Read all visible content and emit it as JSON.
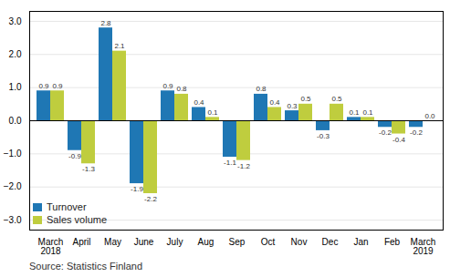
{
  "chart_data": {
    "type": "bar",
    "categories": [
      "March\n2018",
      "April",
      "May",
      "June",
      "July",
      "Aug",
      "Sep",
      "Oct",
      "Nov",
      "Dec",
      "Jan",
      "Feb",
      "March\n2019"
    ],
    "series": [
      {
        "name": "Turnover",
        "color": "#1f77b4",
        "values": [
          0.9,
          -0.9,
          2.8,
          -1.9,
          0.9,
          0.4,
          -1.1,
          0.8,
          0.3,
          -0.3,
          0.1,
          -0.2,
          -0.2
        ],
        "value_labels": [
          "0.9",
          "-0.9",
          "2.8",
          "-1.9",
          "0.9",
          "0.4",
          "-1.1",
          "0.8",
          "0.3",
          "-0.3",
          "0.1",
          "-0.2",
          "-0.2"
        ]
      },
      {
        "name": "Sales volume",
        "color": "#bfcd3e",
        "values": [
          0.9,
          -1.3,
          2.1,
          -2.2,
          0.8,
          0.1,
          -1.2,
          0.4,
          0.5,
          0.5,
          0.1,
          -0.4,
          0.0
        ],
        "value_labels": [
          "0.9",
          "-1.3",
          "2.1",
          "-2.2",
          "0.8",
          "0.1",
          "-1.2",
          "0.4",
          "0.5",
          "0.5",
          "0.1",
          "-0.4",
          "0.0"
        ]
      }
    ],
    "ylim": [
      -3.3,
      3.3
    ],
    "yticks": [
      -3,
      -2,
      -1,
      0,
      1,
      2,
      3
    ],
    "grid": true,
    "data_labels": true,
    "legend": "lower left",
    "annotations": [
      "Source: Statistics Finland"
    ]
  }
}
